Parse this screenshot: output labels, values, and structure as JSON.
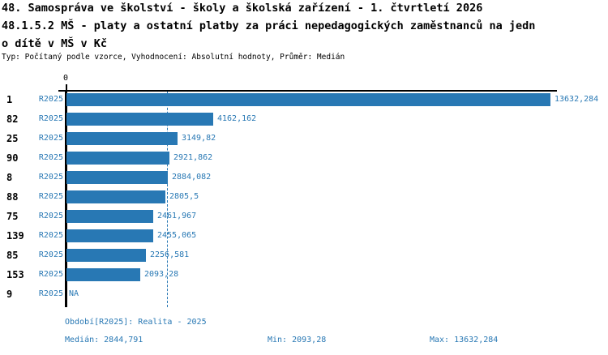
{
  "header": {
    "title_line1": "48. Samospráva ve školství - školy a školská zařízení - 1. čtvrtletí 2026",
    "title_line2": "48.1.5.2 MŠ - platy a ostatní platby za práci nepedagogických zaměstnanců na jedn",
    "title_line3": "o dítě v MŠ v Kč",
    "meta": "Typ: Počítaný podle vzorce, Vyhodnocení: Absolutní hodnoty, Průměr: Medián"
  },
  "chart_data": {
    "type": "bar",
    "orientation": "horizontal",
    "axis_zero_label": "0",
    "series_label": "R2025",
    "categories": [
      "1",
      "82",
      "25",
      "90",
      "8",
      "88",
      "75",
      "139",
      "85",
      "153",
      "9"
    ],
    "values": [
      13632.284,
      4162.162,
      3149.82,
      2921.862,
      2884.082,
      2805.5,
      2461.967,
      2455.065,
      2256.581,
      2093.28,
      null
    ],
    "value_labels": [
      "13632,284",
      "4162,162",
      "3149,82",
      "2921,862",
      "2884,082",
      "2805,5",
      "2461,967",
      "2455,065",
      "2256,581",
      "2093,28",
      "NA"
    ],
    "median_line_value": 2844.791,
    "xlim": [
      0,
      13800
    ],
    "grid": "single dashed vertical line at median",
    "bar_color": "#2878b4",
    "label_color": "#2878b4",
    "median_line_color": "#2878b4"
  },
  "footer": {
    "period": "Období[R2025]: Realita - 2025",
    "median": "Medián: 2844,791",
    "min": "Min: 2093,28",
    "max": "Max: 13632,284"
  }
}
